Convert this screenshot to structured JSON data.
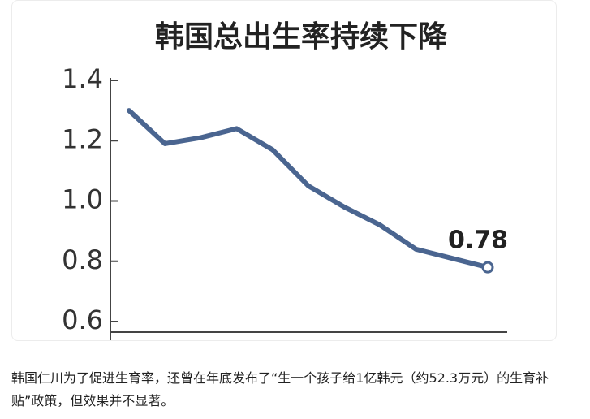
{
  "chart_data": {
    "type": "line",
    "title": "韩国总出生率持续下降",
    "categories": [
      null,
      null,
      null,
      null,
      null,
      null,
      null,
      null,
      null,
      null,
      null
    ],
    "series": [
      {
        "name": null,
        "color": "#4a6590",
        "values": [
          1.3,
          1.19,
          1.21,
          1.24,
          1.17,
          1.05,
          0.98,
          0.92,
          0.84,
          0.81,
          0.78
        ]
      }
    ],
    "ylim": [
      0.6,
      1.4
    ],
    "yticks": [
      0.6,
      0.8,
      {
        "value": 1,
        "label": "1.0"
      },
      1.2,
      1.4
    ],
    "grid": false
  },
  "caption": "韩国仁川为了促进生育率，还曾在年底发布了“生一个孩子给1亿韩元（约52.3万元）的生育补贴”政策，但效果并不显著。"
}
